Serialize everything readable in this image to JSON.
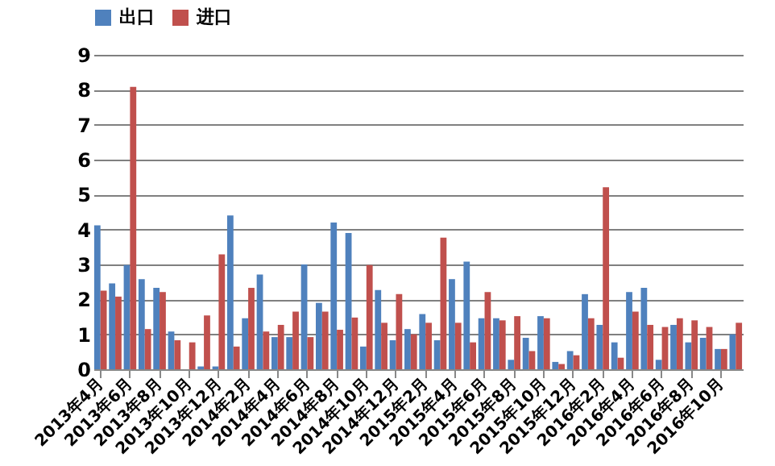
{
  "chart_data": {
    "type": "bar",
    "categories": [
      "2013年4月",
      null,
      "2013年6月",
      null,
      "2013年8月",
      null,
      "2013年10月",
      null,
      "2013年12月",
      null,
      "2014年2月",
      null,
      "2014年4月",
      null,
      "2014年6月",
      null,
      "2014年8月",
      null,
      "2014年10月",
      null,
      "2014年12月",
      null,
      "2015年2月",
      null,
      "2015年4月",
      null,
      "2015年6月",
      null,
      "2015年8月",
      null,
      "2015年10月",
      null,
      "2015年12月",
      null,
      "2016年2月",
      null,
      "2016年4月",
      null,
      "2016年6月",
      null,
      "2016年8月",
      null,
      "2016年10月",
      null
    ],
    "series": [
      {
        "name": "出口",
        "color": "#4f81bd",
        "values": [
          4.12,
          2.46,
          2.98,
          2.58,
          2.33,
          1.08,
          null,
          0.08,
          0.08,
          4.4,
          1.46,
          2.71,
          0.92,
          0.92,
          3.0,
          1.9,
          4.2,
          3.9,
          0.65,
          2.27,
          0.83,
          1.15,
          1.58,
          0.83,
          2.58,
          3.08,
          1.46,
          1.46,
          0.27,
          0.9,
          1.52,
          0.21,
          0.52,
          2.15,
          1.27,
          0.77,
          2.21,
          2.33,
          0.27,
          1.27,
          0.77,
          0.9,
          0.58,
          1.0
        ]
      },
      {
        "name": "进口",
        "color": "#c0504d",
        "values": [
          2.25,
          2.08,
          8.08,
          1.15,
          2.21,
          0.83,
          0.77,
          1.54,
          3.29,
          0.65,
          2.33,
          1.08,
          1.27,
          1.65,
          0.92,
          1.65,
          1.13,
          1.48,
          2.98,
          1.33,
          2.15,
          1.0,
          1.33,
          3.77,
          1.33,
          0.77,
          2.21,
          1.4,
          1.52,
          0.52,
          1.46,
          0.15,
          0.4,
          1.46,
          5.21,
          0.33,
          1.65,
          1.27,
          1.21,
          1.46,
          1.4,
          1.21,
          0.58,
          1.33
        ]
      }
    ],
    "ylim": [
      0,
      9
    ],
    "yticks": [
      0,
      1,
      2,
      3,
      4,
      5,
      6,
      7,
      8,
      9
    ],
    "grid": "y",
    "legend": "top"
  }
}
